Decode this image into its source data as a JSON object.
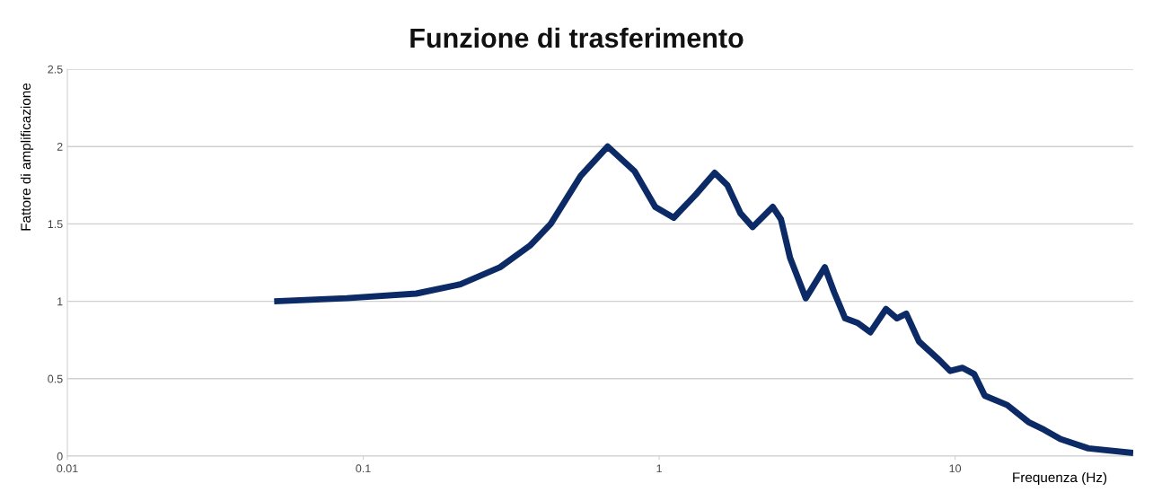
{
  "chart_data": {
    "type": "line",
    "title": "Funzione di trasferimento",
    "xlabel": "Frequenza (Hz)",
    "ylabel": "Fattore di amplificazione",
    "log": "x",
    "grid": "y",
    "marker": "none",
    "line_style": "solid",
    "xlim": [
      0.01,
      40
    ],
    "xticks": [
      0.01,
      0.1,
      1,
      10
    ],
    "ylim": [
      0,
      2.5
    ],
    "yticks": [
      0,
      0.5,
      1,
      1.5,
      2,
      2.5
    ],
    "x": [
      0.05,
      0.088,
      0.151,
      0.213,
      0.29,
      0.366,
      0.43,
      0.543,
      0.67,
      0.826,
      0.97,
      1.12,
      1.33,
      1.54,
      1.7,
      1.88,
      2.07,
      2.42,
      2.58,
      2.77,
      3.13,
      3.63,
      3.9,
      4.25,
      4.69,
      5.17,
      5.84,
      6.36,
      6.84,
      7.55,
      8.85,
      9.62,
      10.6,
      11.6,
      12.6,
      15.0,
      17.7,
      20.0,
      22.7,
      28.2,
      40
    ],
    "series": [
      {
        "color": "#0c2a66",
        "values": [
          1.0,
          1.02,
          1.05,
          1.11,
          1.22,
          1.36,
          1.5,
          1.81,
          2.0,
          1.84,
          1.61,
          1.54,
          1.69,
          1.83,
          1.75,
          1.57,
          1.48,
          1.61,
          1.53,
          1.28,
          1.02,
          1.22,
          1.06,
          0.89,
          0.86,
          0.8,
          0.95,
          0.89,
          0.92,
          0.74,
          0.62,
          0.55,
          0.57,
          0.53,
          0.39,
          0.33,
          0.22,
          0.17,
          0.11,
          0.05,
          0.02
        ]
      }
    ]
  }
}
